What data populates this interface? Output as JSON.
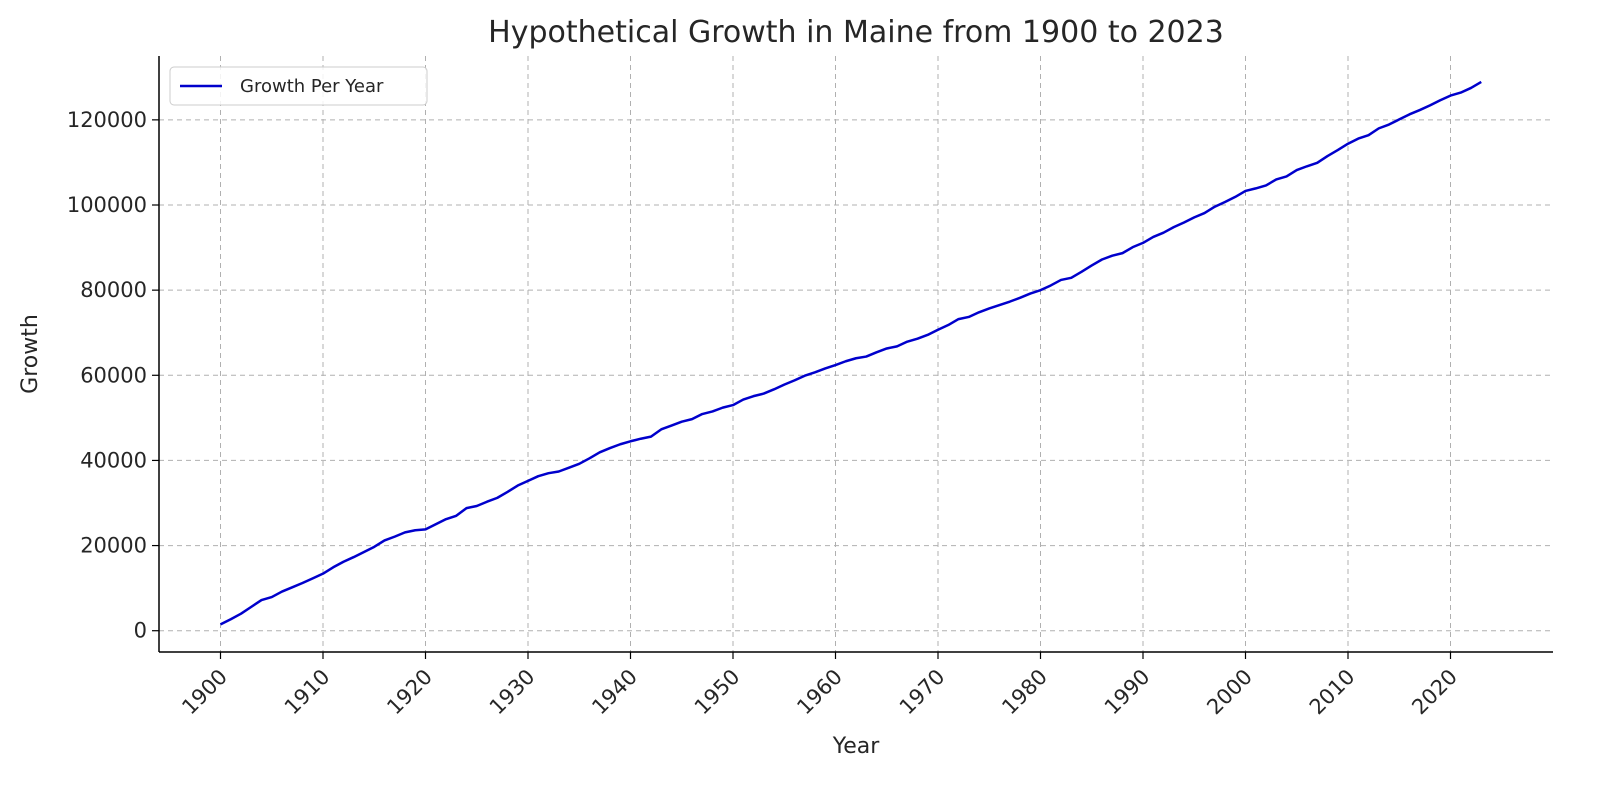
{
  "chart_data": {
    "type": "line",
    "title": "Hypothetical Growth in Maine from 1900 to 2023",
    "xlabel": "Year",
    "ylabel": "Growth",
    "xlim": [
      1894,
      2030
    ],
    "ylim": [
      -5000,
      135000
    ],
    "x_ticks": [
      1900,
      1910,
      1920,
      1930,
      1940,
      1950,
      1960,
      1970,
      1980,
      1990,
      2000,
      2010,
      2020
    ],
    "y_ticks": [
      0,
      20000,
      40000,
      60000,
      80000,
      100000,
      120000
    ],
    "grid": true,
    "legend_position": "top-left",
    "series": [
      {
        "name": "Growth Per Year",
        "color": "#0000cc",
        "x": [
          1900,
          1901,
          1902,
          1903,
          1904,
          1905,
          1906,
          1907,
          1908,
          1909,
          1910,
          1911,
          1912,
          1913,
          1914,
          1915,
          1916,
          1917,
          1918,
          1919,
          1920,
          1921,
          1922,
          1923,
          1924,
          1925,
          1926,
          1927,
          1928,
          1929,
          1930,
          1931,
          1932,
          1933,
          1934,
          1935,
          1936,
          1937,
          1938,
          1939,
          1940,
          1941,
          1942,
          1943,
          1944,
          1945,
          1946,
          1947,
          1948,
          1949,
          1950,
          1951,
          1952,
          1953,
          1954,
          1955,
          1956,
          1957,
          1958,
          1959,
          1960,
          1961,
          1962,
          1963,
          1964,
          1965,
          1966,
          1967,
          1968,
          1969,
          1970,
          1971,
          1972,
          1973,
          1974,
          1975,
          1976,
          1977,
          1978,
          1979,
          1980,
          1981,
          1982,
          1983,
          1984,
          1985,
          1986,
          1987,
          1988,
          1989,
          1990,
          1991,
          1992,
          1993,
          1994,
          1995,
          1996,
          1997,
          1998,
          1999,
          2000,
          2001,
          2002,
          2003,
          2004,
          2005,
          2006,
          2007,
          2008,
          2009,
          2010,
          2011,
          2012,
          2013,
          2014,
          2015,
          2016,
          2017,
          2018,
          2019,
          2020,
          2021,
          2022,
          2023
        ],
        "values": [
          1500,
          2700,
          4000,
          5600,
          7200,
          7900,
          9200,
          10200,
          11200,
          12300,
          13400,
          14900,
          16200,
          17300,
          18500,
          19700,
          21200,
          22100,
          23100,
          23600,
          23800,
          25000,
          26200,
          27000,
          28800,
          29300,
          30300,
          31200,
          32600,
          34100,
          35200,
          36300,
          37000,
          37400,
          38300,
          39200,
          40500,
          41900,
          42900,
          43800,
          44500,
          45100,
          45600,
          47300,
          48200,
          49100,
          49700,
          50900,
          51500,
          52400,
          53000,
          54300,
          55100,
          55700,
          56700,
          57800,
          58800,
          59900,
          60700,
          61600,
          62400,
          63300,
          64000,
          64400,
          65400,
          66300,
          66800,
          67900,
          68600,
          69500,
          70700,
          71800,
          73200,
          73700,
          74800,
          75700,
          76500,
          77300,
          78200,
          79200,
          80000,
          81100,
          82400,
          82900,
          84300,
          85800,
          87200,
          88100,
          88700,
          90100,
          91100,
          92500,
          93500,
          94800,
          95900,
          97100,
          98100,
          99600,
          100700,
          101900,
          103300,
          103900,
          104600,
          106000,
          106700,
          108200,
          109100,
          109900,
          111500,
          112900,
          114400,
          115600,
          116400,
          118000,
          118900,
          120100,
          121300,
          122300,
          123400,
          124600,
          125700,
          126400,
          127500,
          128900
        ]
      }
    ]
  }
}
